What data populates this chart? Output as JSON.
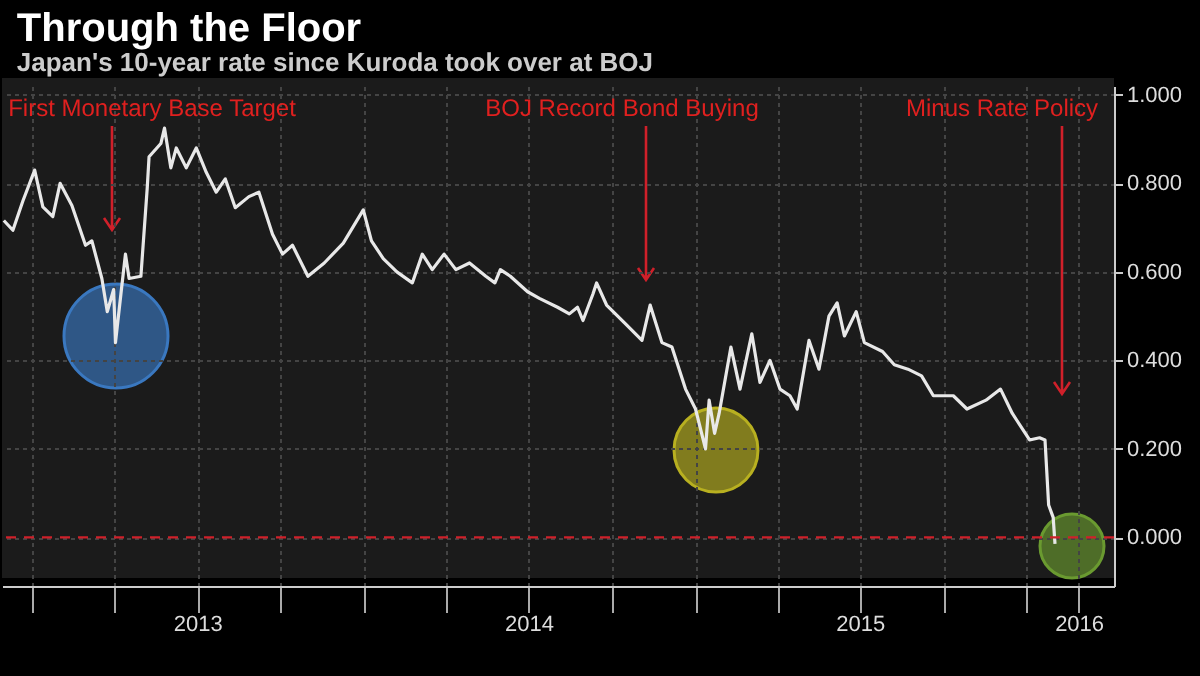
{
  "chart_data": {
    "type": "line",
    "title": "Through the Floor",
    "subtitle": "Japan's 10-year rate since Kuroda took over at BOJ",
    "x": [
      "2012-11-30",
      "2012-12-10",
      "2012-12-21",
      "2013-01-03",
      "2013-01-12",
      "2013-01-23",
      "2013-01-31",
      "2013-02-13",
      "2013-02-28",
      "2013-03-07",
      "2013-03-18",
      "2013-03-24",
      "2013-03-31",
      "2013-04-02",
      "2013-04-08",
      "2013-04-13",
      "2013-04-17",
      "2013-04-30",
      "2013-05-07",
      "2013-05-09",
      "2013-05-22",
      "2013-05-26",
      "2013-06-02",
      "2013-06-08",
      "2013-06-19",
      "2013-06-30",
      "2013-07-11",
      "2013-07-22",
      "2013-08-01",
      "2013-08-12",
      "2013-08-27",
      "2013-09-07",
      "2013-09-22",
      "2013-10-03",
      "2013-10-14",
      "2013-10-31",
      "2013-11-18",
      "2013-12-09",
      "2013-12-31",
      "2014-01-09",
      "2014-01-22",
      "2014-02-06",
      "2014-02-23",
      "2014-03-06",
      "2014-03-17",
      "2014-03-30",
      "2014-04-12",
      "2014-04-27",
      "2014-05-15",
      "2014-05-25",
      "2014-05-31",
      "2014-06-11",
      "2014-06-30",
      "2014-07-13",
      "2014-08-02",
      "2014-08-15",
      "2014-08-24",
      "2014-08-30",
      "2014-09-10",
      "2014-09-14",
      "2014-09-25",
      "2014-10-17",
      "2014-11-03",
      "2014-11-12",
      "2014-11-25",
      "2014-12-06",
      "2014-12-21",
      "2015-01-01",
      "2015-01-12",
      "2015-01-16",
      "2015-01-22",
      "2015-01-27",
      "2015-02-09",
      "2015-02-19",
      "2015-03-04",
      "2015-03-13",
      "2015-03-24",
      "2015-04-04",
      "2015-04-15",
      "2015-04-23",
      "2015-05-06",
      "2015-05-17",
      "2015-05-28",
      "2015-06-06",
      "2015-06-14",
      "2015-06-27",
      "2015-07-06",
      "2015-07-26",
      "2015-08-08",
      "2015-08-23",
      "2015-09-07",
      "2015-09-20",
      "2015-10-12",
      "2015-10-27",
      "2015-11-17",
      "2015-12-03",
      "2015-12-16",
      "2016-01-04",
      "2016-01-15",
      "2016-01-21",
      "2016-01-25",
      "2016-01-30",
      "2016-02-01"
    ],
    "series": [
      {
        "color": "#e8e8e8",
        "values": [
          0.716,
          0.694,
          0.76,
          0.83,
          0.747,
          0.725,
          0.8,
          0.75,
          0.66,
          0.67,
          0.585,
          0.51,
          0.56,
          0.44,
          0.55,
          0.64,
          0.585,
          0.59,
          0.79,
          0.86,
          0.89,
          0.925,
          0.835,
          0.88,
          0.835,
          0.88,
          0.825,
          0.78,
          0.81,
          0.745,
          0.77,
          0.78,
          0.685,
          0.64,
          0.66,
          0.59,
          0.62,
          0.665,
          0.74,
          0.67,
          0.63,
          0.6,
          0.575,
          0.64,
          0.605,
          0.64,
          0.605,
          0.62,
          0.59,
          0.575,
          0.605,
          0.59,
          0.555,
          0.54,
          0.52,
          0.505,
          0.52,
          0.49,
          0.55,
          0.575,
          0.525,
          0.48,
          0.445,
          0.525,
          0.44,
          0.43,
          0.335,
          0.29,
          0.2,
          0.31,
          0.235,
          0.28,
          0.43,
          0.335,
          0.46,
          0.35,
          0.4,
          0.335,
          0.32,
          0.29,
          0.445,
          0.38,
          0.5,
          0.53,
          0.455,
          0.51,
          0.44,
          0.42,
          0.39,
          0.38,
          0.365,
          0.32,
          0.32,
          0.29,
          0.31,
          0.335,
          0.28,
          0.22,
          0.225,
          0.22,
          0.073,
          0.045,
          -0.015
        ]
      }
    ],
    "xlim": [
      "2012-11-28",
      "2016-04-06"
    ],
    "xticks": [
      {
        "value": "2013-01-01",
        "label": null
      },
      {
        "value": "2013-04-01",
        "label": null
      },
      {
        "value": "2013-07-01",
        "label": "2013"
      },
      {
        "value": "2013-10-01",
        "label": null
      },
      {
        "value": "2014-01-01",
        "label": null
      },
      {
        "value": "2014-04-01",
        "label": null
      },
      {
        "value": "2014-07-01",
        "label": "2014"
      },
      {
        "value": "2014-10-01",
        "label": null
      },
      {
        "value": "2015-01-01",
        "label": null
      },
      {
        "value": "2015-04-01",
        "label": null
      },
      {
        "value": "2015-07-01",
        "label": "2015"
      },
      {
        "value": "2015-10-01",
        "label": null
      },
      {
        "value": "2016-01-01",
        "label": null
      },
      {
        "value": "2016-02-27",
        "label": "2016"
      }
    ],
    "ylim": [
      -0.11,
      1.02
    ],
    "yticks": [
      {
        "value": 0,
        "label": "0.000"
      },
      {
        "value": 0.2,
        "label": "0.200"
      },
      {
        "value": 0.4,
        "label": "0.400"
      },
      {
        "value": 0.6,
        "label": "0.600"
      },
      {
        "value": 0.8,
        "label": "0.800"
      },
      {
        "value": 1,
        "label": "1.000"
      }
    ],
    "grid": true,
    "ref_lines": [
      {
        "axis": "y",
        "value": 0,
        "color": "#d0202a",
        "line_style": "dashed"
      }
    ],
    "annotations": [
      "First Monetary Base Target",
      "BOJ Record Bond Buying",
      "Minus Rate Policy"
    ]
  }
}
